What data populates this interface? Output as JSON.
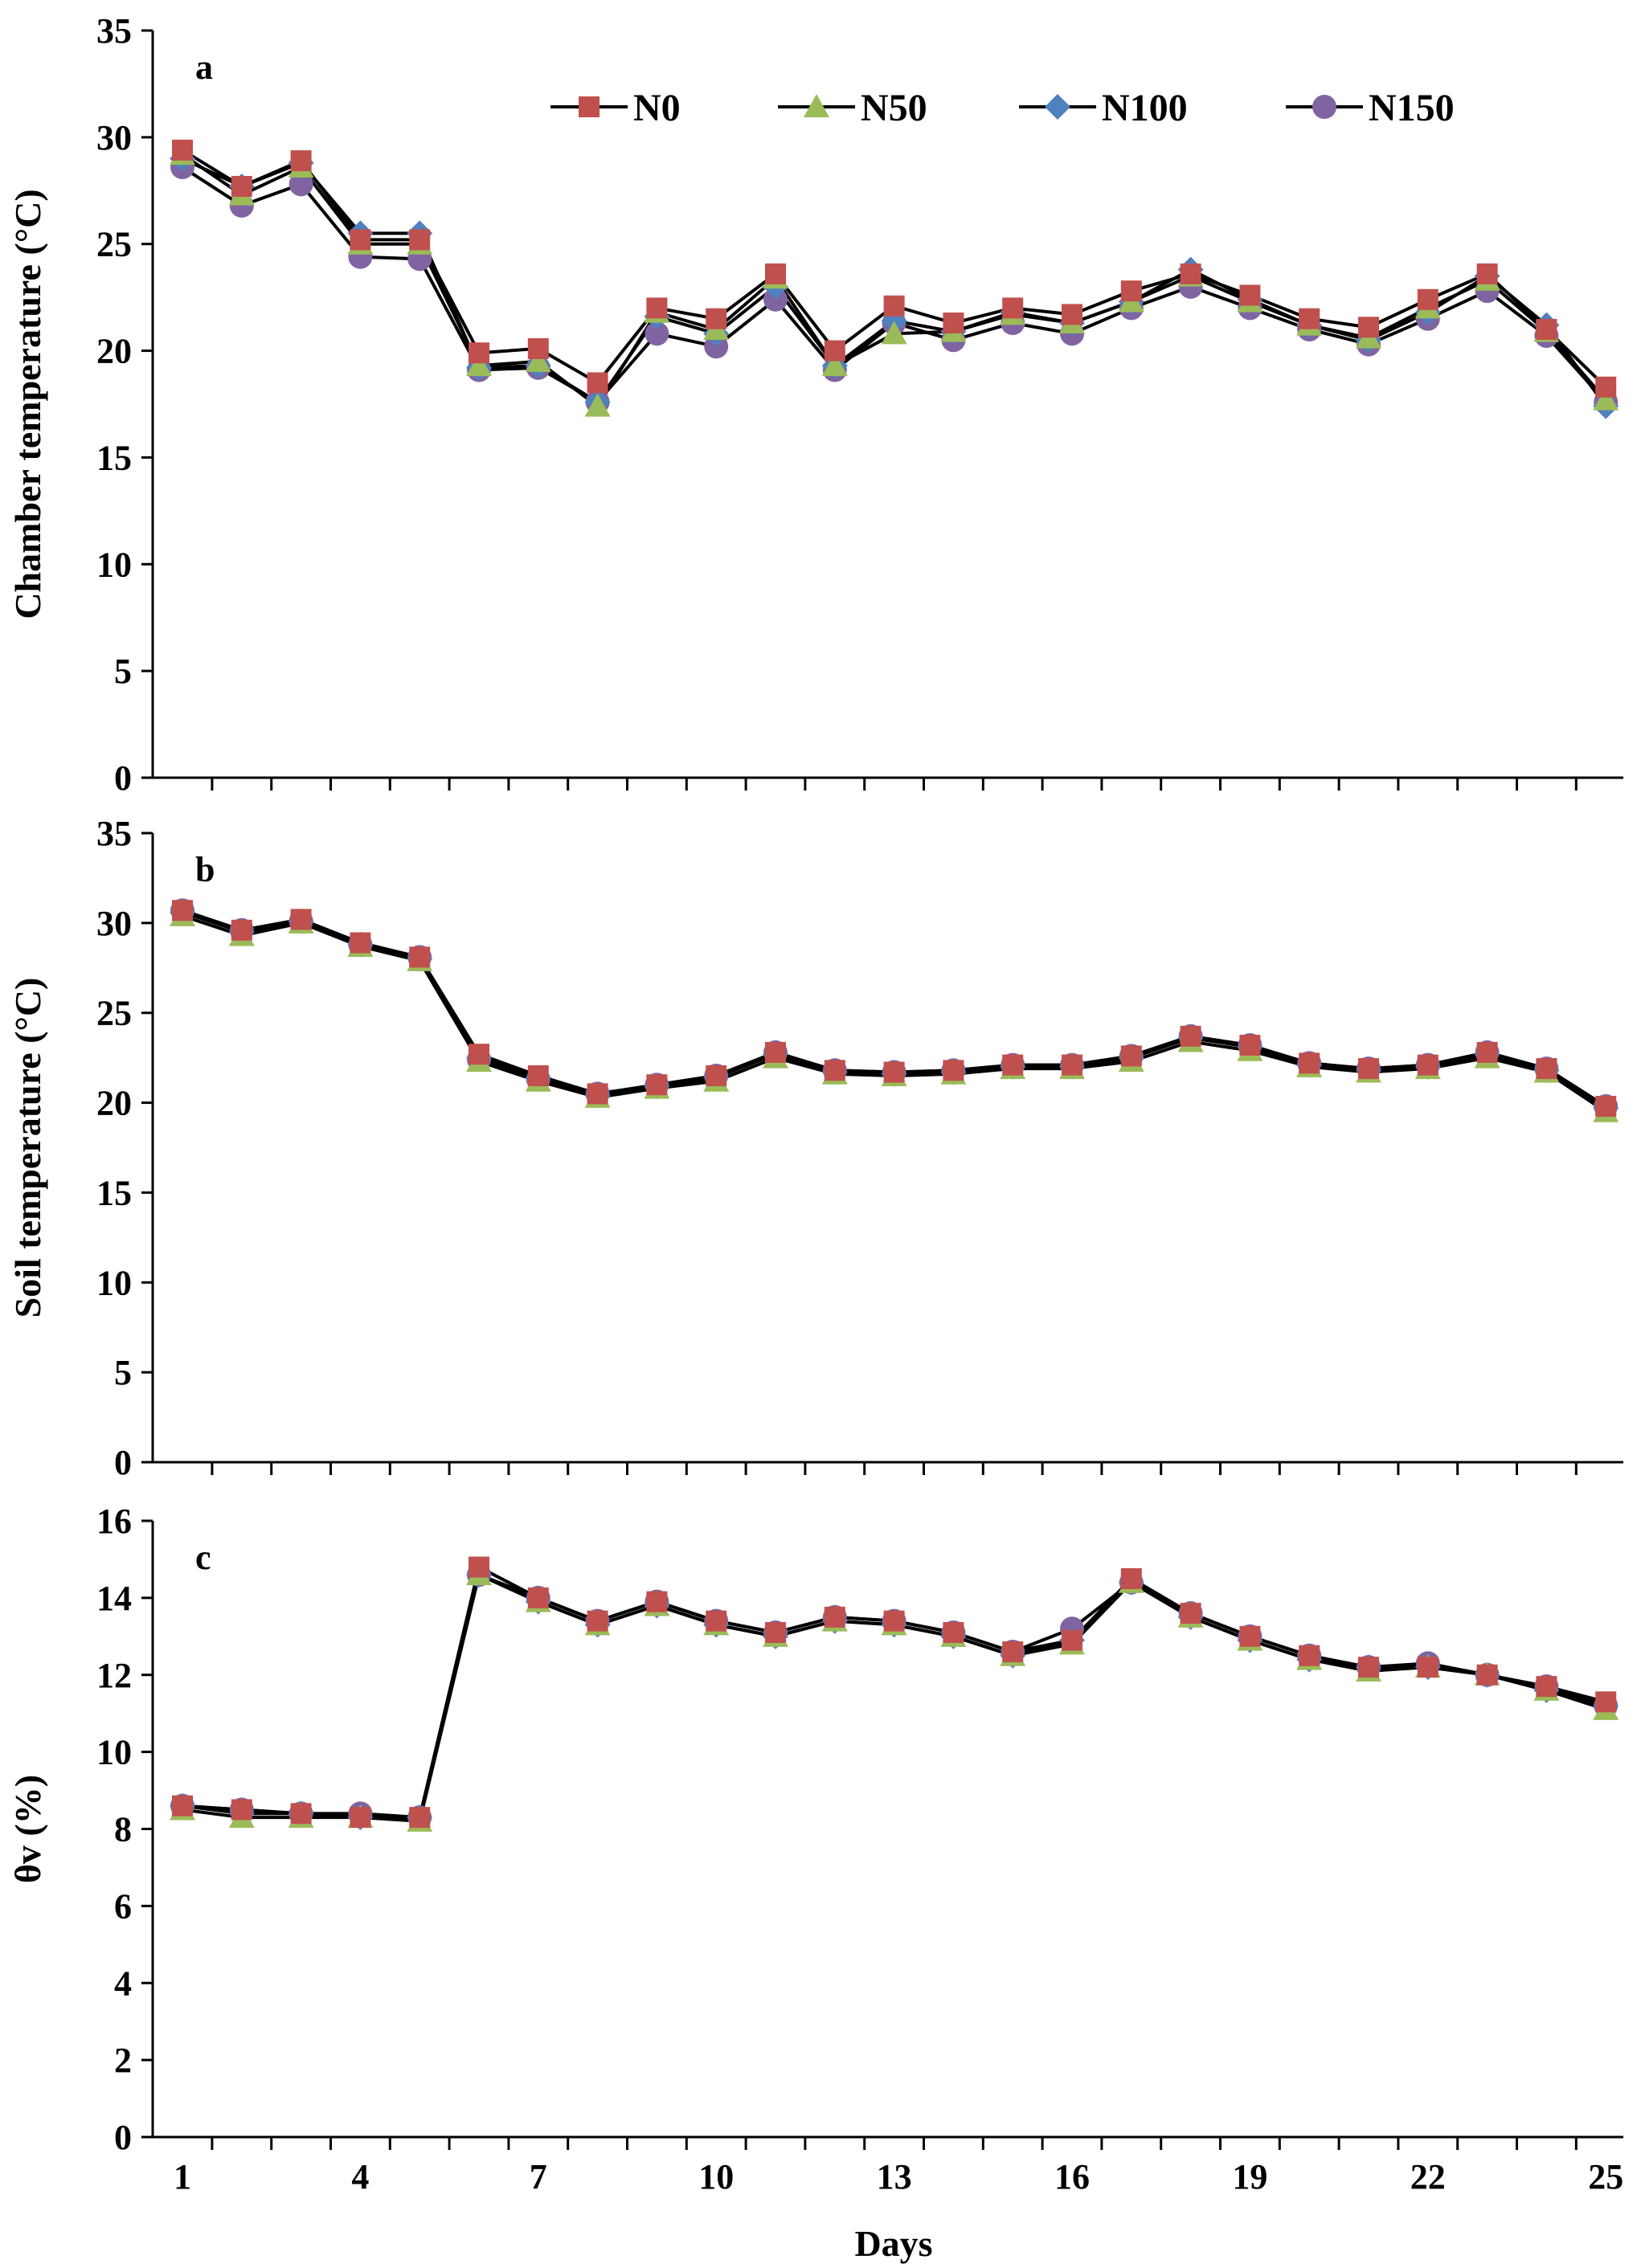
{
  "chart_data": [
    {
      "panel": "a",
      "type": "line",
      "ylabel": "Chamber  temperature  (°C)",
      "ylim": [
        0,
        35
      ],
      "yticks": [
        0,
        5,
        10,
        15,
        20,
        25,
        30,
        35
      ],
      "x": [
        1,
        2,
        3,
        4,
        5,
        6,
        7,
        8,
        9,
        10,
        11,
        12,
        13,
        14,
        15,
        16,
        17,
        18,
        19,
        20,
        21,
        22,
        23,
        24,
        25
      ],
      "series": [
        {
          "name": "N0",
          "color": "#C0504D",
          "marker": "square",
          "values": [
            29.4,
            27.7,
            28.9,
            25.2,
            25.2,
            19.9,
            20.1,
            18.5,
            22.0,
            21.5,
            23.6,
            20.0,
            22.1,
            21.3,
            22.0,
            21.7,
            22.8,
            23.6,
            22.6,
            21.5,
            21.1,
            22.4,
            23.6,
            21.0,
            18.3
          ]
        },
        {
          "name": "N50",
          "color": "#9BBB59",
          "marker": "triangle",
          "values": [
            29.2,
            27.3,
            28.6,
            25.0,
            25.0,
            19.3,
            19.5,
            17.4,
            21.8,
            21.0,
            23.4,
            19.3,
            20.8,
            20.9,
            21.7,
            21.3,
            22.3,
            23.5,
            22.3,
            21.2,
            20.6,
            22.0,
            23.3,
            20.9,
            17.7
          ]
        },
        {
          "name": "N100",
          "color": "#4F81BD",
          "marker": "diamond",
          "values": [
            29.0,
            27.7,
            28.8,
            25.5,
            25.5,
            19.2,
            19.3,
            17.6,
            21.6,
            20.8,
            23.0,
            19.3,
            21.4,
            20.9,
            21.8,
            21.3,
            22.3,
            23.8,
            22.4,
            21.2,
            20.5,
            21.8,
            23.5,
            21.2,
            17.4
          ]
        },
        {
          "name": "N150",
          "color": "#8064A2",
          "marker": "circle",
          "values": [
            28.6,
            26.8,
            27.8,
            24.4,
            24.3,
            19.1,
            19.2,
            17.6,
            20.8,
            20.2,
            22.4,
            19.1,
            21.3,
            20.5,
            21.3,
            20.8,
            22.0,
            23.0,
            22.0,
            21.0,
            20.3,
            21.5,
            22.8,
            20.7,
            17.6
          ]
        }
      ]
    },
    {
      "panel": "b",
      "type": "line",
      "ylabel": "Soil temperature  (°C)",
      "ylim": [
        0,
        35
      ],
      "yticks": [
        0,
        5,
        10,
        15,
        20,
        25,
        30,
        35
      ],
      "x": [
        1,
        2,
        3,
        4,
        5,
        6,
        7,
        8,
        9,
        10,
        11,
        12,
        13,
        14,
        15,
        16,
        17,
        18,
        19,
        20,
        21,
        22,
        23,
        24,
        25
      ],
      "series": [
        {
          "name": "N0",
          "color": "#C0504D",
          "marker": "square",
          "values": [
            30.7,
            29.6,
            30.2,
            28.9,
            28.1,
            22.7,
            21.5,
            20.5,
            21.0,
            21.5,
            22.8,
            21.8,
            21.7,
            21.8,
            22.1,
            22.1,
            22.6,
            23.7,
            23.2,
            22.2,
            21.9,
            22.1,
            22.8,
            21.9,
            19.8
          ]
        },
        {
          "name": "N50",
          "color": "#9BBB59",
          "marker": "triangle",
          "values": [
            30.4,
            29.3,
            30.0,
            28.7,
            27.9,
            22.3,
            21.2,
            20.3,
            20.8,
            21.2,
            22.5,
            21.6,
            21.5,
            21.6,
            21.9,
            21.9,
            22.3,
            23.4,
            22.9,
            22.0,
            21.7,
            21.9,
            22.5,
            21.7,
            19.5
          ]
        },
        {
          "name": "N100",
          "color": "#4F81BD",
          "marker": "diamond",
          "values": [
            30.6,
            29.5,
            30.1,
            28.8,
            28.0,
            22.5,
            21.4,
            20.4,
            20.9,
            21.4,
            22.7,
            21.7,
            21.6,
            21.7,
            22.0,
            22.0,
            22.5,
            23.6,
            23.1,
            22.1,
            21.8,
            22.0,
            22.7,
            21.8,
            19.7
          ]
        },
        {
          "name": "N150",
          "color": "#8064A2",
          "marker": "circle",
          "values": [
            30.7,
            29.6,
            30.1,
            28.8,
            28.1,
            22.4,
            21.3,
            20.5,
            21.0,
            21.5,
            22.8,
            21.8,
            21.7,
            21.8,
            22.1,
            22.1,
            22.6,
            23.7,
            23.2,
            22.2,
            21.9,
            22.1,
            22.8,
            21.9,
            19.8
          ]
        }
      ]
    },
    {
      "panel": "c",
      "type": "line",
      "ylabel": "θv (%)",
      "xlabel": "Days",
      "ylim": [
        0,
        16
      ],
      "yticks": [
        0,
        2,
        4,
        6,
        8,
        10,
        12,
        14,
        16
      ],
      "xticks": [
        1,
        4,
        7,
        10,
        13,
        16,
        19,
        22,
        25
      ],
      "x": [
        1,
        2,
        3,
        4,
        5,
        6,
        7,
        8,
        9,
        10,
        11,
        12,
        13,
        14,
        15,
        16,
        17,
        18,
        19,
        20,
        21,
        22,
        23,
        24,
        25
      ],
      "series": [
        {
          "name": "N0",
          "color": "#C0504D",
          "marker": "square",
          "values": [
            8.6,
            8.5,
            8.4,
            8.3,
            8.3,
            14.8,
            14.0,
            13.4,
            13.9,
            13.4,
            13.1,
            13.5,
            13.4,
            13.1,
            12.6,
            12.9,
            14.5,
            13.6,
            13.0,
            12.5,
            12.2,
            12.2,
            12.0,
            11.7,
            11.3
          ]
        },
        {
          "name": "N50",
          "color": "#9BBB59",
          "marker": "triangle",
          "values": [
            8.5,
            8.3,
            8.3,
            8.3,
            8.2,
            14.6,
            13.9,
            13.3,
            13.8,
            13.3,
            13.0,
            13.4,
            13.3,
            13.0,
            12.5,
            12.8,
            14.4,
            13.5,
            12.9,
            12.4,
            12.1,
            12.2,
            12.0,
            11.6,
            11.1
          ]
        },
        {
          "name": "N100",
          "color": "#4F81BD",
          "marker": "diamond",
          "values": [
            8.6,
            8.4,
            8.4,
            8.3,
            8.3,
            14.6,
            13.9,
            13.3,
            13.8,
            13.3,
            13.0,
            13.4,
            13.3,
            13.0,
            12.5,
            12.9,
            14.4,
            13.5,
            12.9,
            12.4,
            12.2,
            12.2,
            12.0,
            11.6,
            11.2
          ]
        },
        {
          "name": "N150",
          "color": "#8064A2",
          "marker": "circle",
          "values": [
            8.6,
            8.5,
            8.4,
            8.4,
            8.3,
            14.6,
            14.0,
            13.4,
            13.9,
            13.4,
            13.1,
            13.5,
            13.4,
            13.1,
            12.6,
            13.2,
            14.4,
            13.6,
            13.0,
            12.5,
            12.2,
            12.3,
            12.0,
            11.7,
            11.2
          ]
        }
      ]
    }
  ],
  "legend": [
    "N0",
    "N50",
    "N100",
    "N150"
  ]
}
